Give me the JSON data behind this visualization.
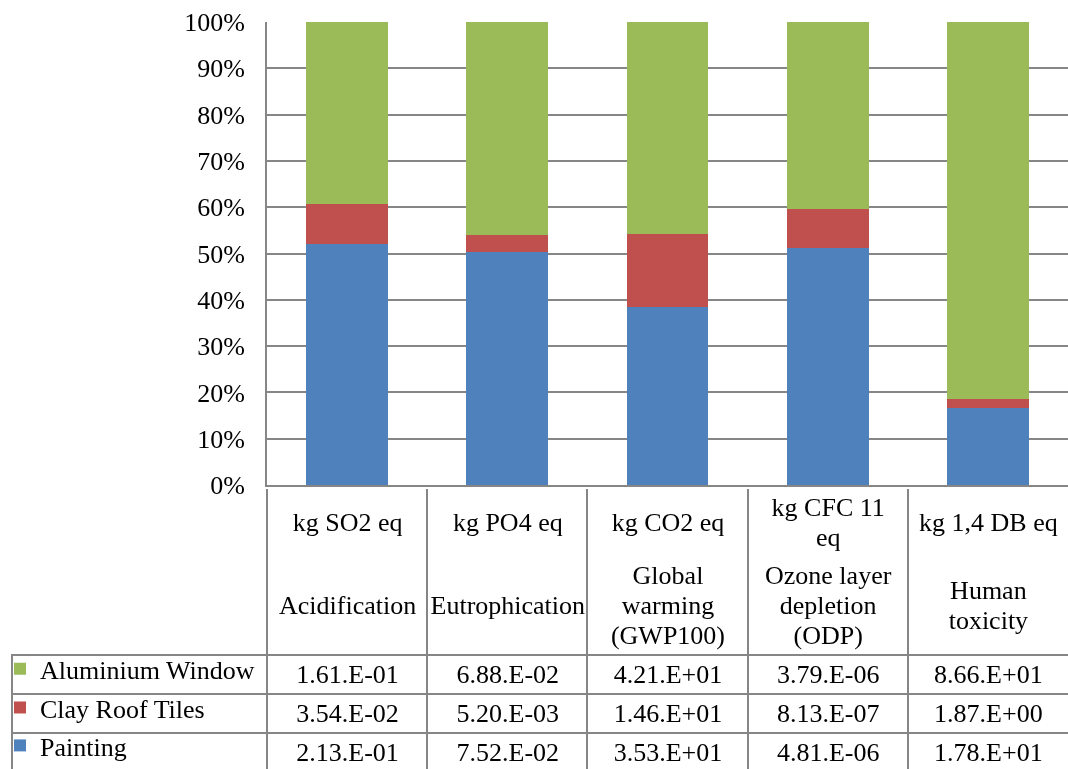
{
  "chart_data": {
    "type": "bar",
    "stacked": true,
    "categories": [
      "kg SO2 eq\nAcidification",
      "kg PO4 eq\nEutrophication",
      "kg CO2 eq\nGlobal warming (GWP100)",
      "kg CFC 11 eq\nOzone layer depletion (ODP)",
      "kg 1,4 DB eq\nHuman toxicity"
    ],
    "series": [
      {
        "name": "Painting",
        "color": "#4f81bd",
        "values": [
          52.0,
          50.4,
          38.4,
          51.1,
          16.7
        ]
      },
      {
        "name": "Clay Roof Tiles",
        "color": "#c0504d",
        "values": [
          8.6,
          3.5,
          15.9,
          8.6,
          1.8
        ]
      },
      {
        "name": "Aluminium Window",
        "color": "#9bbb59",
        "values": [
          39.4,
          46.1,
          45.7,
          40.3,
          81.5
        ]
      }
    ],
    "ylim": [
      0,
      100
    ],
    "yticks": [
      {
        "value": 0,
        "label": "0%"
      },
      {
        "value": 10,
        "label": "10%"
      },
      {
        "value": 20,
        "label": "20%"
      },
      {
        "value": 30,
        "label": "30%"
      },
      {
        "value": 40,
        "label": "40%"
      },
      {
        "value": 50,
        "label": "50%"
      },
      {
        "value": 60,
        "label": "60%"
      },
      {
        "value": 70,
        "label": "70%"
      },
      {
        "value": 80,
        "label": "80%"
      },
      {
        "value": 90,
        "label": "90%"
      },
      {
        "value": 100,
        "label": "100%"
      }
    ],
    "grid": "y",
    "legend": "bottom left",
    "annotations": [
      "1.61.E-01",
      "6.88.E-02",
      "4.21.E+01",
      "3.79.E-06",
      "8.66.E+01",
      "3.54.E-02",
      "5.20.E-03",
      "1.46.E+01",
      "8.13.E-07",
      "1.87.E+00",
      "2.13.E-01",
      "7.52.E-02",
      "3.53.E+01",
      "4.81.E-06",
      "1.78.E+01"
    ]
  }
}
